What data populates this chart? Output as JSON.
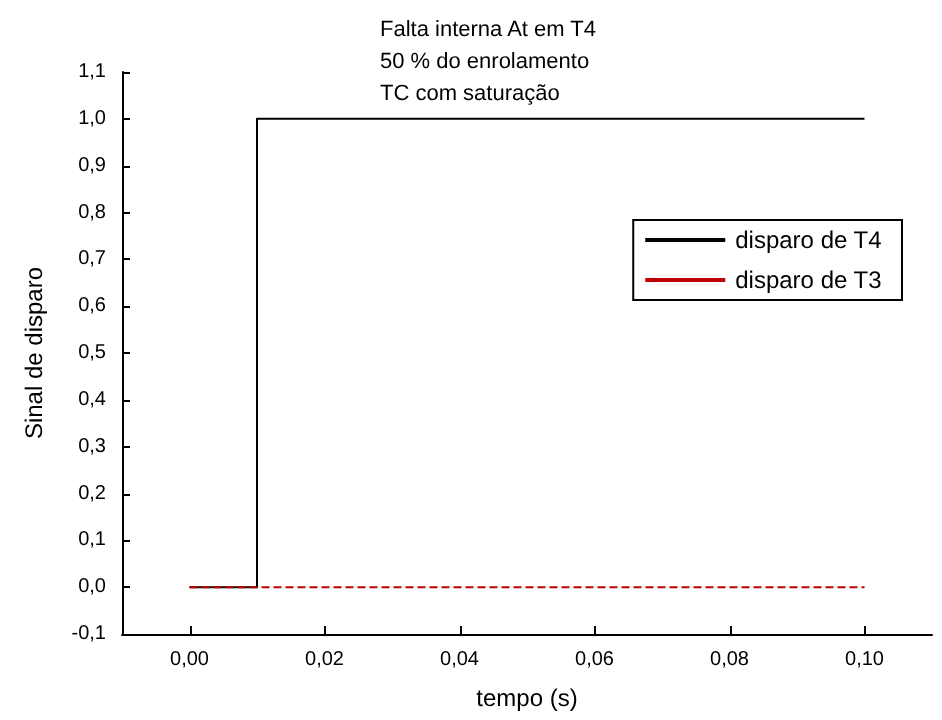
{
  "chart_data": {
    "type": "line",
    "title": "Falta interna At em T4\n50 % do enrolamento\nTC com saturação",
    "xlabel": "tempo (s)",
    "ylabel": "Sinal de disparo",
    "xlim": [
      -0.01,
      0.11
    ],
    "xticks": [
      {
        "value": 0,
        "label": "0,00"
      },
      {
        "value": 0.02,
        "label": "0,02"
      },
      {
        "value": 0.04,
        "label": "0,04"
      },
      {
        "value": 0.06,
        "label": "0,06"
      },
      {
        "value": 0.08,
        "label": "0,08"
      },
      {
        "value": 0.1,
        "label": "0,10"
      }
    ],
    "ylim": [
      -0.1,
      1.1
    ],
    "yticks": [
      {
        "value": -0.1,
        "label": "-0,1"
      },
      {
        "value": 0,
        "label": "0,0"
      },
      {
        "value": 0.1,
        "label": "0,1"
      },
      {
        "value": 0.2,
        "label": "0,2"
      },
      {
        "value": 0.3,
        "label": "0,3"
      },
      {
        "value": 0.4,
        "label": "0,4"
      },
      {
        "value": 0.5,
        "label": "0,5"
      },
      {
        "value": 0.6,
        "label": "0,6"
      },
      {
        "value": 0.7,
        "label": "0,7"
      },
      {
        "value": 0.8,
        "label": "0,8"
      },
      {
        "value": 0.9,
        "label": "0,9"
      },
      {
        "value": 1,
        "label": "1,0"
      },
      {
        "value": 1.1,
        "label": "1,1"
      }
    ],
    "series": [
      {
        "name": "disparo de T4",
        "color": "#000000",
        "line_style": "solid",
        "x": [
          0,
          0.01,
          0.01,
          0.1
        ],
        "values": [
          0,
          0,
          1,
          1
        ]
      },
      {
        "name": "disparo de T3",
        "color": "#c00000",
        "line_style": "dashed",
        "x": [
          0,
          0.1
        ],
        "values": [
          0,
          0
        ]
      }
    ],
    "legend": "top right",
    "grid": false,
    "marker": "none"
  }
}
